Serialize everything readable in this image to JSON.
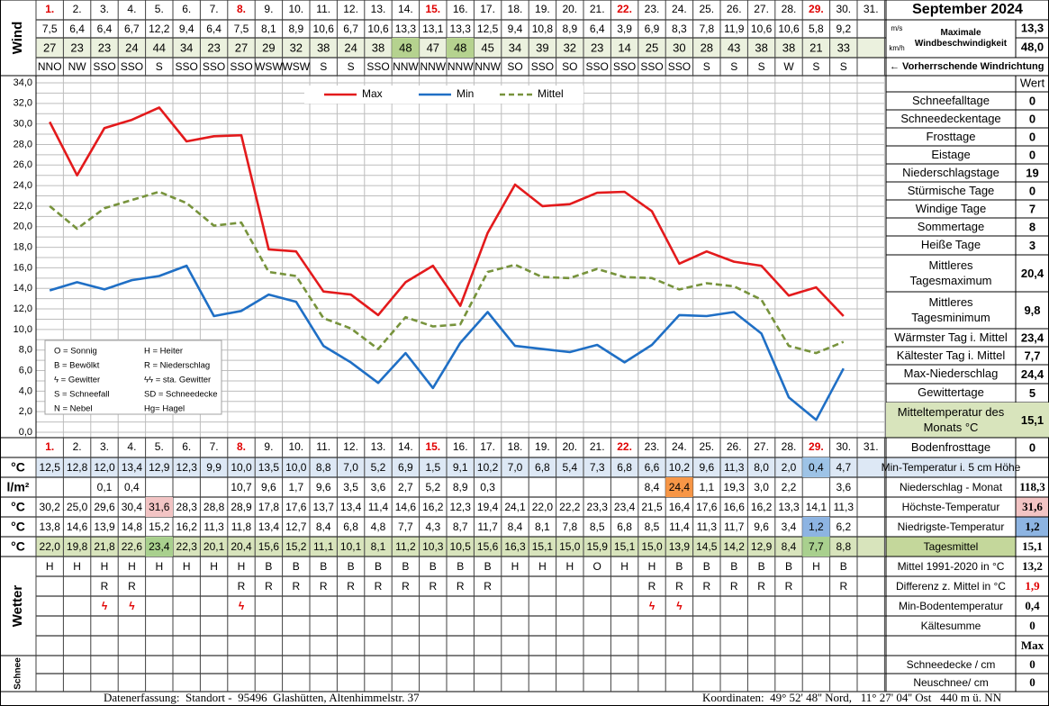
{
  "chart_data": {
    "type": "line",
    "categories": [
      "1.",
      "2.",
      "3.",
      "4.",
      "5.",
      "6.",
      "7.",
      "8.",
      "9.",
      "10.",
      "11.",
      "12.",
      "13.",
      "14.",
      "15.",
      "16.",
      "17.",
      "18.",
      "19.",
      "20.",
      "21.",
      "22.",
      "23.",
      "24.",
      "25.",
      "26.",
      "27.",
      "28.",
      "29.",
      "30.",
      "31."
    ],
    "day_colors": [
      "#e00000",
      "#000000",
      "#000000",
      "#000000",
      "#000000",
      "#000000",
      "#000000",
      "#e00000",
      "#000000",
      "#000000",
      "#000000",
      "#000000",
      "#000000",
      "#000000",
      "#e00000",
      "#000000",
      "#000000",
      "#000000",
      "#000000",
      "#000000",
      "#000000",
      "#e00000",
      "#000000",
      "#000000",
      "#000000",
      "#000000",
      "#000000",
      "#000000",
      "#e00000",
      "#000000",
      "#000000"
    ],
    "series": [
      {
        "name": "Max",
        "color": "#e31a1c",
        "values": [
          30.2,
          25.0,
          29.6,
          30.4,
          31.6,
          28.3,
          28.8,
          28.9,
          17.8,
          17.6,
          13.7,
          13.4,
          11.4,
          14.6,
          16.2,
          12.3,
          19.4,
          24.1,
          22.0,
          22.2,
          23.3,
          23.4,
          21.5,
          16.4,
          17.6,
          16.6,
          16.2,
          13.3,
          14.1,
          11.3,
          null
        ]
      },
      {
        "name": "Min",
        "color": "#1f6fc5",
        "values": [
          13.8,
          14.6,
          13.9,
          14.8,
          15.2,
          16.2,
          11.3,
          11.8,
          13.4,
          12.7,
          8.4,
          6.8,
          4.8,
          7.7,
          4.3,
          8.7,
          11.7,
          8.4,
          8.1,
          7.8,
          8.5,
          6.8,
          8.5,
          11.4,
          11.3,
          11.7,
          9.6,
          3.4,
          1.2,
          6.2,
          null
        ]
      },
      {
        "name": "Mittel",
        "color": "#77933c",
        "dash": true,
        "values": [
          22.0,
          19.8,
          21.8,
          22.6,
          23.4,
          22.3,
          20.1,
          20.4,
          15.6,
          15.2,
          11.1,
          10.1,
          8.1,
          11.2,
          10.3,
          10.5,
          15.6,
          16.3,
          15.1,
          15.0,
          15.9,
          15.1,
          15.0,
          13.9,
          14.5,
          14.2,
          12.9,
          8.4,
          7.7,
          8.8,
          null
        ]
      }
    ],
    "ylim": [
      0,
      34
    ],
    "yticks": [
      {
        "value": 0,
        "label": "0,0"
      },
      {
        "value": 2,
        "label": "2,0"
      },
      {
        "value": 4,
        "label": "4,0"
      },
      {
        "value": 6,
        "label": "6,0"
      },
      {
        "value": 8,
        "label": "8,0"
      },
      {
        "value": 10,
        "label": "10,0"
      },
      {
        "value": 12,
        "label": "12,0"
      },
      {
        "value": 14,
        "label": "14,0"
      },
      {
        "value": 16,
        "label": "16,0"
      },
      {
        "value": 18,
        "label": "18,0"
      },
      {
        "value": 20,
        "label": "20,0"
      },
      {
        "value": 22,
        "label": "22,0"
      },
      {
        "value": 24,
        "label": "24,0"
      },
      {
        "value": 26,
        "label": "26,0"
      },
      {
        "value": 28,
        "label": "28,0"
      },
      {
        "value": 30,
        "label": "30,0"
      },
      {
        "value": 32,
        "label": "32,0"
      },
      {
        "value": 34,
        "label": "34,0"
      }
    ],
    "grid": true,
    "legend": "top",
    "key": [
      "O = Sonnig",
      "H = Heiter",
      "B = Bewölkt",
      "R = Niederschlag",
      "ϟ = Gewitter",
      "ϟϟ = sta. Gewitter",
      "S = Schneefall",
      "SD = Schneedecke",
      "N = Nebel",
      "Hg= Hagel"
    ]
  },
  "header": {
    "title": "September 2024"
  },
  "wind": {
    "label": "Wind",
    "unit_ms": "m/s",
    "unit_kmh": "km/h",
    "max_label": "Maximale Windbeschwindigkeit",
    "max_ms": "13,3",
    "max_kmh": "48,0",
    "direction_label": "← Vorherrschende Windrichtung",
    "kmh_fill": "#ebf1de",
    "speed_ms": [
      "7,5",
      "6,4",
      "6,4",
      "6,7",
      "12,2",
      "9,4",
      "6,4",
      "7,5",
      "8,1",
      "8,9",
      "10,6",
      "6,7",
      "10,6",
      "13,3",
      "13,1",
      "13,3",
      "12,5",
      "9,4",
      "10,8",
      "8,9",
      "6,4",
      "3,9",
      "6,9",
      "8,3",
      "7,8",
      "11,9",
      "10,6",
      "10,6",
      "5,8",
      "9,2"
    ],
    "speed_kmh": [
      "27",
      "23",
      "23",
      "24",
      "44",
      "34",
      "23",
      "27",
      "29",
      "32",
      "38",
      "24",
      "38",
      {
        "text": "48",
        "fill": "#b5d28f"
      },
      "47",
      {
        "text": "48",
        "fill": "#b5d28f"
      },
      "45",
      "34",
      "39",
      "32",
      "23",
      "14",
      "25",
      "30",
      "28",
      "43",
      "38",
      "38",
      "21",
      "33"
    ],
    "direction": [
      "NNO",
      "NW",
      "SSO",
      "SSO",
      "S",
      "SSO",
      "SSO",
      "SSO",
      "WSW",
      "WSW",
      "S",
      "S",
      "SSO",
      "NNW",
      "NNW",
      "NNW",
      "NNW",
      "SO",
      "SSO",
      "SO",
      "SSO",
      "SSO",
      "SSO",
      "SSO",
      "S",
      "S",
      "S",
      "W",
      "S",
      "S"
    ]
  },
  "stats": {
    "header": "Wert",
    "items": [
      {
        "label": "Schneefalltage",
        "value": "0"
      },
      {
        "label": "Schneedeckentage",
        "value": "0"
      },
      {
        "label": "Frosttage",
        "value": "0"
      },
      {
        "label": "Eistage",
        "value": "0"
      },
      {
        "label": "Niederschlagstage",
        "value": "19"
      },
      {
        "label": "Stürmische Tage",
        "value": "0"
      },
      {
        "label": "Windige Tage",
        "value": "7"
      },
      {
        "label": "Sommertage",
        "value": "8"
      },
      {
        "label": "Heiße Tage",
        "value": "3"
      },
      {
        "label": "Mittleres Tagesmaximum",
        "value": "20,4"
      },
      {
        "label": "Mittleres Tagesminimum",
        "value": "9,8"
      },
      {
        "label": "Wärmster Tag i. Mittel",
        "value": "23,4"
      },
      {
        "label": "Kältester Tag i. Mittel",
        "value": "7,7"
      },
      {
        "label": "Max-Niederschlag",
        "value": "24,4"
      },
      {
        "label": "Gewittertage",
        "value": "5"
      },
      {
        "label": "Mitteltemperatur des Monats °C",
        "value": "15,1",
        "fill": "#d8e4bc"
      },
      {
        "label": "Bodenfrosttage",
        "value": "0"
      }
    ]
  },
  "measurements": [
    {
      "label": "°C",
      "fill": "#dde8f5",
      "summary_label": "Min-Temperatur i. 5 cm Höhe",
      "summary_fill": "#dde8f5",
      "cells": [
        "12,5",
        "12,8",
        "12,0",
        "13,4",
        "12,9",
        "12,3",
        "9,9",
        "10,0",
        "13,5",
        "10,0",
        "8,8",
        "7,0",
        "5,2",
        "6,9",
        "1,5",
        "9,1",
        "10,2",
        "7,0",
        "6,8",
        "5,4",
        "7,3",
        "6,8",
        "6,6",
        "10,2",
        "9,6",
        "11,3",
        "8,0",
        "2,0",
        {
          "text": "0,4",
          "fill": "#9dc3e6"
        },
        "4,7"
      ]
    },
    {
      "label": "l/m²",
      "summary_label": "Niederschlag - Monat",
      "summary_value": "118,3",
      "cells": [
        null,
        null,
        "0,1",
        "0,4",
        null,
        null,
        null,
        "10,7",
        "9,6",
        "1,7",
        "9,6",
        "3,5",
        "3,6",
        "2,7",
        "5,2",
        "8,9",
        "0,3",
        null,
        null,
        null,
        null,
        null,
        "8,4",
        {
          "text": "24,4",
          "fill": "#f79646"
        },
        "1,1",
        "19,3",
        "3,0",
        "2,2",
        null,
        "3,6"
      ]
    },
    {
      "label": "°C",
      "summary_label": "Höchste-Temperatur",
      "summary_value": "31,6",
      "value_fill": "#f2c4c4",
      "cells": [
        "30,2",
        "25,0",
        "29,6",
        "30,4",
        {
          "text": "31,6",
          "fill": "#f2c4c4"
        },
        "28,3",
        "28,8",
        "28,9",
        "17,8",
        "17,6",
        "13,7",
        "13,4",
        "11,4",
        "14,6",
        "16,2",
        "12,3",
        "19,4",
        "24,1",
        "22,0",
        "22,2",
        "23,3",
        "23,4",
        "21,5",
        "16,4",
        "17,6",
        "16,6",
        "16,2",
        "13,3",
        "14,1",
        "11,3"
      ]
    },
    {
      "label": "°C",
      "summary_label": "Niedrigste-Temperatur",
      "summary_value": "1,2",
      "value_fill": "#8db4e2",
      "cells": [
        "13,8",
        "14,6",
        "13,9",
        "14,8",
        "15,2",
        "16,2",
        "11,3",
        "11,8",
        "13,4",
        "12,7",
        "8,4",
        "6,8",
        "4,8",
        "7,7",
        "4,3",
        "8,7",
        "11,7",
        "8,4",
        "8,1",
        "7,8",
        "8,5",
        "6,8",
        "8,5",
        "11,4",
        "11,3",
        "11,7",
        "9,6",
        "3,4",
        {
          "text": "1,2",
          "fill": "#8db4e2"
        },
        "6,2"
      ]
    },
    {
      "label": "°C",
      "fill": "#d8e4bc",
      "summary_label": "Tagesmittel",
      "summary_value": "15,1",
      "summary_fill": "#c4d79b",
      "cells": [
        "22,0",
        "19,8",
        "21,8",
        "22,6",
        {
          "text": "23,4",
          "fill": "#a9d08e"
        },
        "22,3",
        "20,1",
        "20,4",
        "15,6",
        "15,2",
        "11,1",
        "10,1",
        "8,1",
        "11,2",
        "10,3",
        "10,5",
        "15,6",
        "16,3",
        "15,1",
        "15,0",
        "15,9",
        "15,1",
        "15,0",
        "13,9",
        "14,5",
        "14,2",
        "12,9",
        "8,4",
        {
          "text": "7,7",
          "fill": "#a9d08e"
        },
        "8,8"
      ]
    }
  ],
  "weather": {
    "label": "Wetter",
    "rows": [
      {
        "summary_label": "Mittel 1991-2020 in °C",
        "summary_value": "13,2",
        "cells": [
          "H",
          "H",
          "H",
          "H",
          "H",
          "H",
          "H",
          "H",
          "B",
          "B",
          "B",
          "B",
          "B",
          "B",
          "B",
          "B",
          "B",
          "H",
          "H",
          "H",
          "O",
          "H",
          "H",
          "B",
          "B",
          "B",
          "B",
          "B",
          "H",
          "B"
        ]
      },
      {
        "summary_label": "Differenz z. Mittel in °C",
        "summary_value": "1,9",
        "value_color": "#e00000",
        "cells": [
          null,
          null,
          "R",
          "R",
          null,
          null,
          null,
          "R",
          "R",
          "R",
          "R",
          "R",
          "R",
          "R",
          "R",
          "R",
          "R",
          null,
          null,
          null,
          null,
          null,
          "R",
          "R",
          "R",
          "R",
          "R",
          "R",
          null,
          "R"
        ]
      },
      {
        "summary_label": "Min-Bodentemperatur",
        "summary_value": "0,4",
        "color": "#e00000",
        "cells": [
          null,
          null,
          "ϟ",
          "ϟ",
          null,
          null,
          null,
          "ϟ",
          null,
          null,
          null,
          null,
          null,
          null,
          null,
          null,
          null,
          null,
          null,
          null,
          null,
          null,
          "ϟ",
          "ϟ",
          null,
          null,
          null,
          null,
          null,
          null
        ]
      },
      {
        "summary_label": "Kältesumme",
        "summary_value": "0"
      },
      {
        "summary_value": "Max"
      }
    ]
  },
  "snow": {
    "label": "Schnee",
    "rows": [
      {
        "summary_label": "Schneedecke / cm",
        "summary_value": "0"
      },
      {
        "summary_label": "Neuschnee/ cm",
        "summary_value": "0"
      }
    ]
  },
  "footer": {
    "left": "Datenerfassung:  Standort -  95496  Glashütten, Altenhimmelstr. 37",
    "right": "Koordinaten:  49° 52' 48'' Nord,   11° 27' 04'' Ost   440 m ü. NN"
  }
}
